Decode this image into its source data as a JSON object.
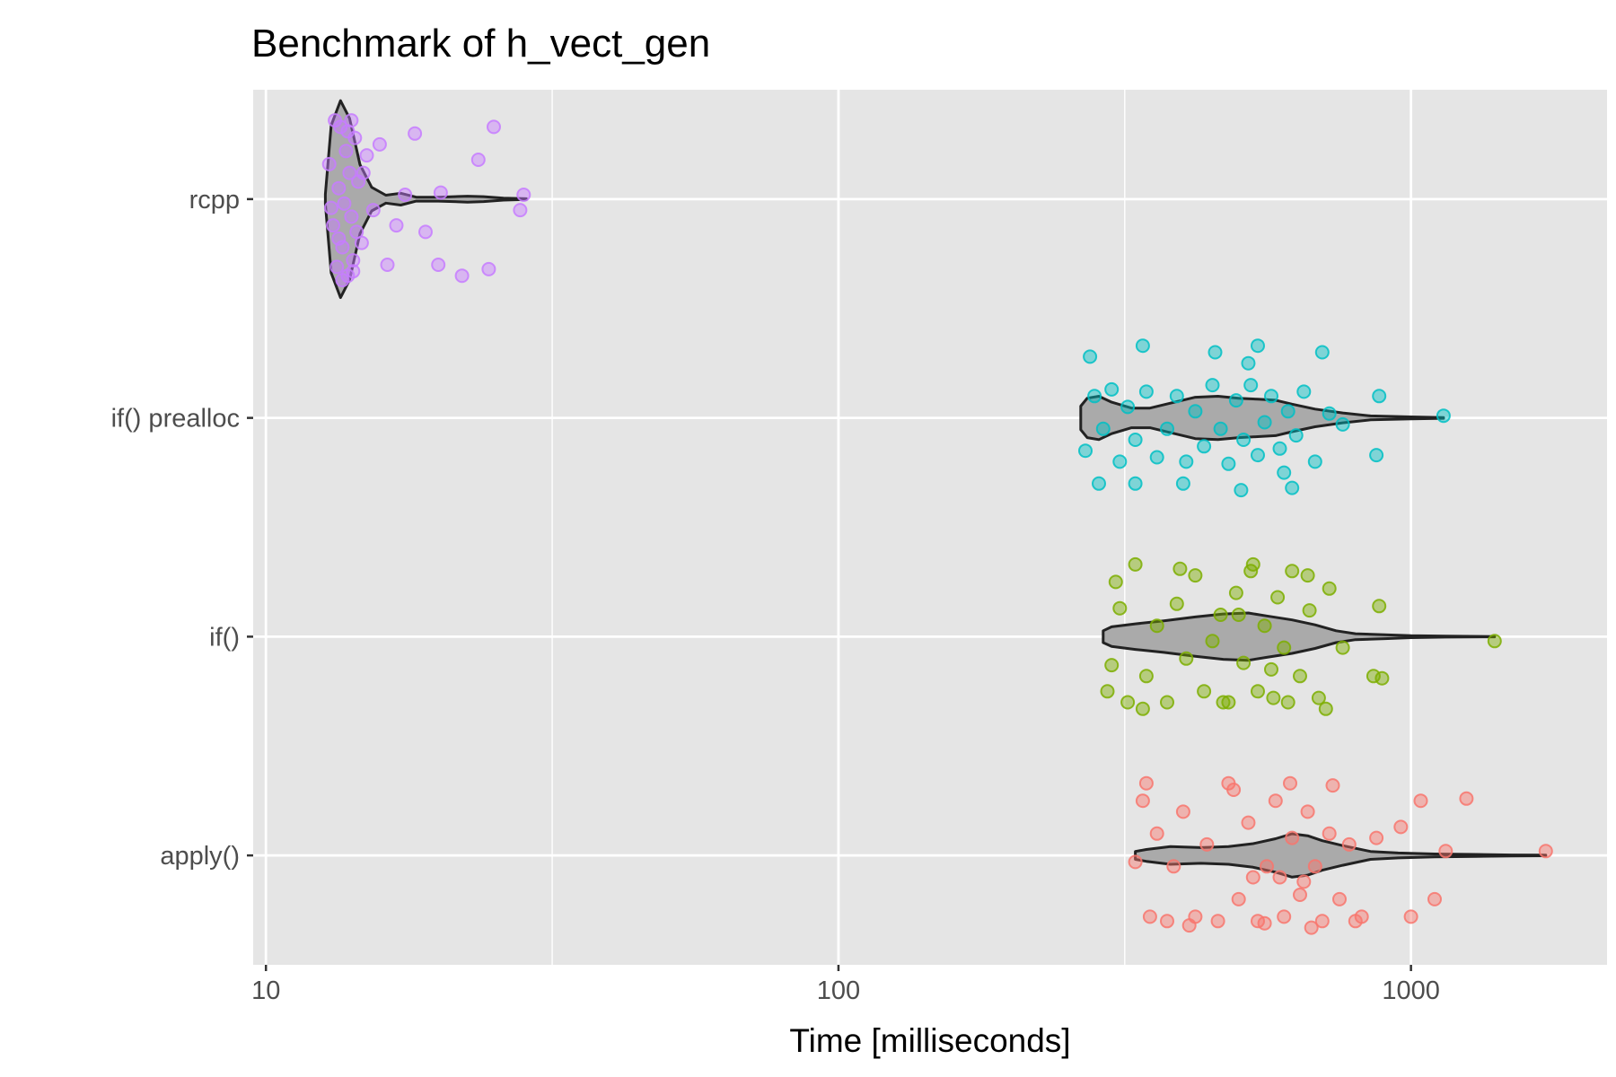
{
  "chart_data": {
    "type": "violin",
    "title": "Benchmark of h_vect_gen",
    "xlabel": "Time [milliseconds]",
    "ylabel": "",
    "x_scale": "log10",
    "xlim": [
      9.5,
      2200
    ],
    "x_ticks": [
      10,
      100,
      1000
    ],
    "x_tick_labels": [
      "10",
      "100",
      "1000"
    ],
    "categories": [
      "apply()",
      "if()",
      "if() prealloc",
      "rcpp"
    ],
    "grid": true,
    "legend": "none",
    "colors": {
      "rcpp": "#c77cff",
      "if() prealloc": "#00bfc4",
      "if()": "#7cae00",
      "apply()": "#f8766d",
      "violin_fill": "#aaaaaa",
      "violin_stroke": "#222222",
      "panel_bg": "#e5e5e5",
      "grid": "#ffffff"
    },
    "series": [
      {
        "category": "rcpp",
        "violin": {
          "min": 12.7,
          "max": 28.5,
          "profile": [
            [
              12.7,
              0.05
            ],
            [
              13.0,
              0.75
            ],
            [
              13.5,
              1.0
            ],
            [
              14.0,
              0.82
            ],
            [
              14.6,
              0.35
            ],
            [
              15.3,
              0.12
            ],
            [
              16.2,
              0.04
            ],
            [
              17.2,
              0.06
            ],
            [
              18.3,
              0.02
            ],
            [
              20,
              0.02
            ],
            [
              22.5,
              0.03
            ],
            [
              24,
              0.025
            ],
            [
              26,
              0.01
            ],
            [
              28.5,
              0.004
            ]
          ]
        },
        "points": [
          [
            12.9,
            -0.16
          ],
          [
            13.1,
            0.12
          ],
          [
            13.3,
            0.31
          ],
          [
            13.4,
            -0.05
          ],
          [
            13.5,
            -0.33
          ],
          [
            13.6,
            0.22
          ],
          [
            13.7,
            0.02
          ],
          [
            13.8,
            -0.22
          ],
          [
            13.9,
            0.35
          ],
          [
            14.0,
            -0.12
          ],
          [
            14.1,
            0.08
          ],
          [
            14.2,
            0.28
          ],
          [
            14.3,
            -0.28
          ],
          [
            13.2,
            -0.36
          ],
          [
            13.6,
            0.37
          ],
          [
            14.4,
            0.15
          ],
          [
            14.5,
            -0.08
          ],
          [
            13.0,
            0.04
          ],
          [
            13.9,
            -0.31
          ],
          [
            14.2,
            0.33
          ],
          [
            14.7,
            0.2
          ],
          [
            15.0,
            -0.2
          ],
          [
            15.4,
            0.05
          ],
          [
            15.8,
            -0.25
          ],
          [
            16.3,
            0.3
          ],
          [
            16.9,
            0.12
          ],
          [
            17.5,
            -0.02
          ],
          [
            18.2,
            -0.3
          ],
          [
            19.0,
            0.15
          ],
          [
            20.0,
            0.3
          ],
          [
            20.2,
            -0.03
          ],
          [
            22.0,
            0.35
          ],
          [
            23.5,
            -0.18
          ],
          [
            24.5,
            0.32
          ],
          [
            25.0,
            -0.33
          ],
          [
            27.8,
            0.05
          ],
          [
            28.2,
            -0.02
          ],
          [
            14.1,
            -0.36
          ],
          [
            13.4,
            0.18
          ],
          [
            14.8,
            -0.12
          ]
        ]
      },
      {
        "category": "if() prealloc",
        "violin": {
          "min": 265,
          "max": 1140,
          "profile": [
            [
              265,
              0.12
            ],
            [
              272,
              0.2
            ],
            [
              285,
              0.22
            ],
            [
              300,
              0.16
            ],
            [
              325,
              0.1
            ],
            [
              350,
              0.1
            ],
            [
              380,
              0.15
            ],
            [
              420,
              0.21
            ],
            [
              460,
              0.22
            ],
            [
              500,
              0.2
            ],
            [
              540,
              0.19
            ],
            [
              580,
              0.18
            ],
            [
              620,
              0.14
            ],
            [
              680,
              0.09
            ],
            [
              760,
              0.05
            ],
            [
              850,
              0.02
            ],
            [
              1000,
              0.01
            ],
            [
              1140,
              0.004
            ]
          ]
        },
        "points": [
          [
            270,
            0.15
          ],
          [
            280,
            -0.1
          ],
          [
            290,
            0.05
          ],
          [
            300,
            -0.13
          ],
          [
            310,
            0.2
          ],
          [
            320,
            -0.05
          ],
          [
            330,
            0.1
          ],
          [
            345,
            -0.12
          ],
          [
            360,
            0.18
          ],
          [
            375,
            0.05
          ],
          [
            390,
            -0.1
          ],
          [
            405,
            0.2
          ],
          [
            420,
            -0.03
          ],
          [
            435,
            0.13
          ],
          [
            450,
            -0.15
          ],
          [
            465,
            0.05
          ],
          [
            480,
            0.21
          ],
          [
            495,
            -0.08
          ],
          [
            510,
            0.1
          ],
          [
            525,
            -0.15
          ],
          [
            540,
            0.17
          ],
          [
            555,
            0.02
          ],
          [
            570,
            -0.1
          ],
          [
            590,
            0.14
          ],
          [
            610,
            -0.03
          ],
          [
            630,
            0.08
          ],
          [
            650,
            -0.12
          ],
          [
            680,
            0.2
          ],
          [
            720,
            -0.02
          ],
          [
            760,
            0.03
          ],
          [
            870,
            0.17
          ],
          [
            880,
            -0.1
          ],
          [
            1140,
            -0.01
          ],
          [
            285,
            0.3
          ],
          [
            340,
            -0.33
          ],
          [
            400,
            0.3
          ],
          [
            455,
            -0.3
          ],
          [
            505,
            0.33
          ],
          [
            540,
            -0.33
          ],
          [
            620,
            0.32
          ],
          [
            700,
            -0.3
          ],
          [
            275,
            -0.28
          ],
          [
            330,
            0.3
          ],
          [
            520,
            -0.25
          ],
          [
            600,
            0.25
          ]
        ]
      },
      {
        "category": "if()",
        "violin": {
          "min": 290,
          "max": 1400,
          "profile": [
            [
              290,
              0.06
            ],
            [
              300,
              0.1
            ],
            [
              330,
              0.13
            ],
            [
              370,
              0.16
            ],
            [
              420,
              0.2
            ],
            [
              470,
              0.23
            ],
            [
              520,
              0.24
            ],
            [
              560,
              0.21
            ],
            [
              620,
              0.17
            ],
            [
              680,
              0.12
            ],
            [
              740,
              0.06
            ],
            [
              800,
              0.03
            ],
            [
              900,
              0.02
            ],
            [
              1000,
              0.01
            ],
            [
              1150,
              0.005
            ],
            [
              1400,
              0.002
            ]
          ]
        },
        "points": [
          [
            300,
            0.13
          ],
          [
            310,
            -0.13
          ],
          [
            320,
            0.3
          ],
          [
            330,
            -0.33
          ],
          [
            345,
            0.18
          ],
          [
            360,
            -0.05
          ],
          [
            375,
            0.3
          ],
          [
            390,
            -0.15
          ],
          [
            405,
            0.1
          ],
          [
            420,
            -0.28
          ],
          [
            435,
            0.25
          ],
          [
            450,
            0.02
          ],
          [
            465,
            -0.1
          ],
          [
            480,
            0.3
          ],
          [
            495,
            -0.2
          ],
          [
            510,
            0.12
          ],
          [
            525,
            -0.3
          ],
          [
            540,
            0.25
          ],
          [
            555,
            -0.05
          ],
          [
            570,
            0.15
          ],
          [
            585,
            -0.18
          ],
          [
            600,
            0.05
          ],
          [
            620,
            -0.3
          ],
          [
            640,
            0.18
          ],
          [
            665,
            -0.12
          ],
          [
            690,
            0.28
          ],
          [
            720,
            -0.22
          ],
          [
            760,
            0.05
          ],
          [
            860,
            0.18
          ],
          [
            880,
            -0.14
          ],
          [
            890,
            0.19
          ],
          [
            1400,
            0.02
          ],
          [
            295,
            0.25
          ],
          [
            340,
            0.33
          ],
          [
            395,
            -0.31
          ],
          [
            470,
            0.3
          ],
          [
            530,
            -0.33
          ],
          [
            610,
            0.3
          ],
          [
            660,
            -0.28
          ],
          [
            710,
            0.33
          ],
          [
            305,
            -0.25
          ],
          [
            500,
            -0.1
          ],
          [
            575,
            0.28
          ]
        ]
      },
      {
        "category": "apply()",
        "violin": {
          "min": 330,
          "max": 1720,
          "profile": [
            [
              330,
              0.04
            ],
            [
              345,
              0.06
            ],
            [
              380,
              0.09
            ],
            [
              430,
              0.08
            ],
            [
              480,
              0.09
            ],
            [
              530,
              0.12
            ],
            [
              580,
              0.17
            ],
            [
              620,
              0.22
            ],
            [
              660,
              0.2
            ],
            [
              700,
              0.15
            ],
            [
              760,
              0.1
            ],
            [
              850,
              0.04
            ],
            [
              950,
              0.025
            ],
            [
              1100,
              0.015
            ],
            [
              1300,
              0.01
            ],
            [
              1500,
              0.005
            ],
            [
              1720,
              0.003
            ]
          ]
        },
        "points": [
          [
            330,
            0.03
          ],
          [
            340,
            -0.25
          ],
          [
            350,
            0.28
          ],
          [
            360,
            -0.1
          ],
          [
            375,
            0.3
          ],
          [
            385,
            0.05
          ],
          [
            400,
            -0.2
          ],
          [
            420,
            0.28
          ],
          [
            440,
            -0.05
          ],
          [
            460,
            0.3
          ],
          [
            480,
            -0.33
          ],
          [
            500,
            0.2
          ],
          [
            520,
            -0.15
          ],
          [
            540,
            0.3
          ],
          [
            560,
            0.05
          ],
          [
            580,
            -0.25
          ],
          [
            600,
            0.28
          ],
          [
            620,
            -0.08
          ],
          [
            640,
            0.18
          ],
          [
            660,
            -0.2
          ],
          [
            680,
            0.05
          ],
          [
            700,
            0.3
          ],
          [
            720,
            -0.1
          ],
          [
            750,
            0.2
          ],
          [
            780,
            -0.05
          ],
          [
            820,
            0.28
          ],
          [
            870,
            -0.08
          ],
          [
            960,
            -0.13
          ],
          [
            1000,
            0.28
          ],
          [
            1040,
            -0.25
          ],
          [
            1100,
            0.2
          ],
          [
            1150,
            -0.02
          ],
          [
            1250,
            -0.26
          ],
          [
            1720,
            -0.02
          ],
          [
            345,
            -0.33
          ],
          [
            410,
            0.32
          ],
          [
            490,
            -0.3
          ],
          [
            555,
            0.31
          ],
          [
            615,
            -0.33
          ],
          [
            670,
            0.33
          ],
          [
            730,
            -0.32
          ],
          [
            800,
            0.3
          ],
          [
            530,
            0.1
          ],
          [
            590,
            0.1
          ],
          [
            650,
            0.12
          ]
        ]
      }
    ]
  }
}
